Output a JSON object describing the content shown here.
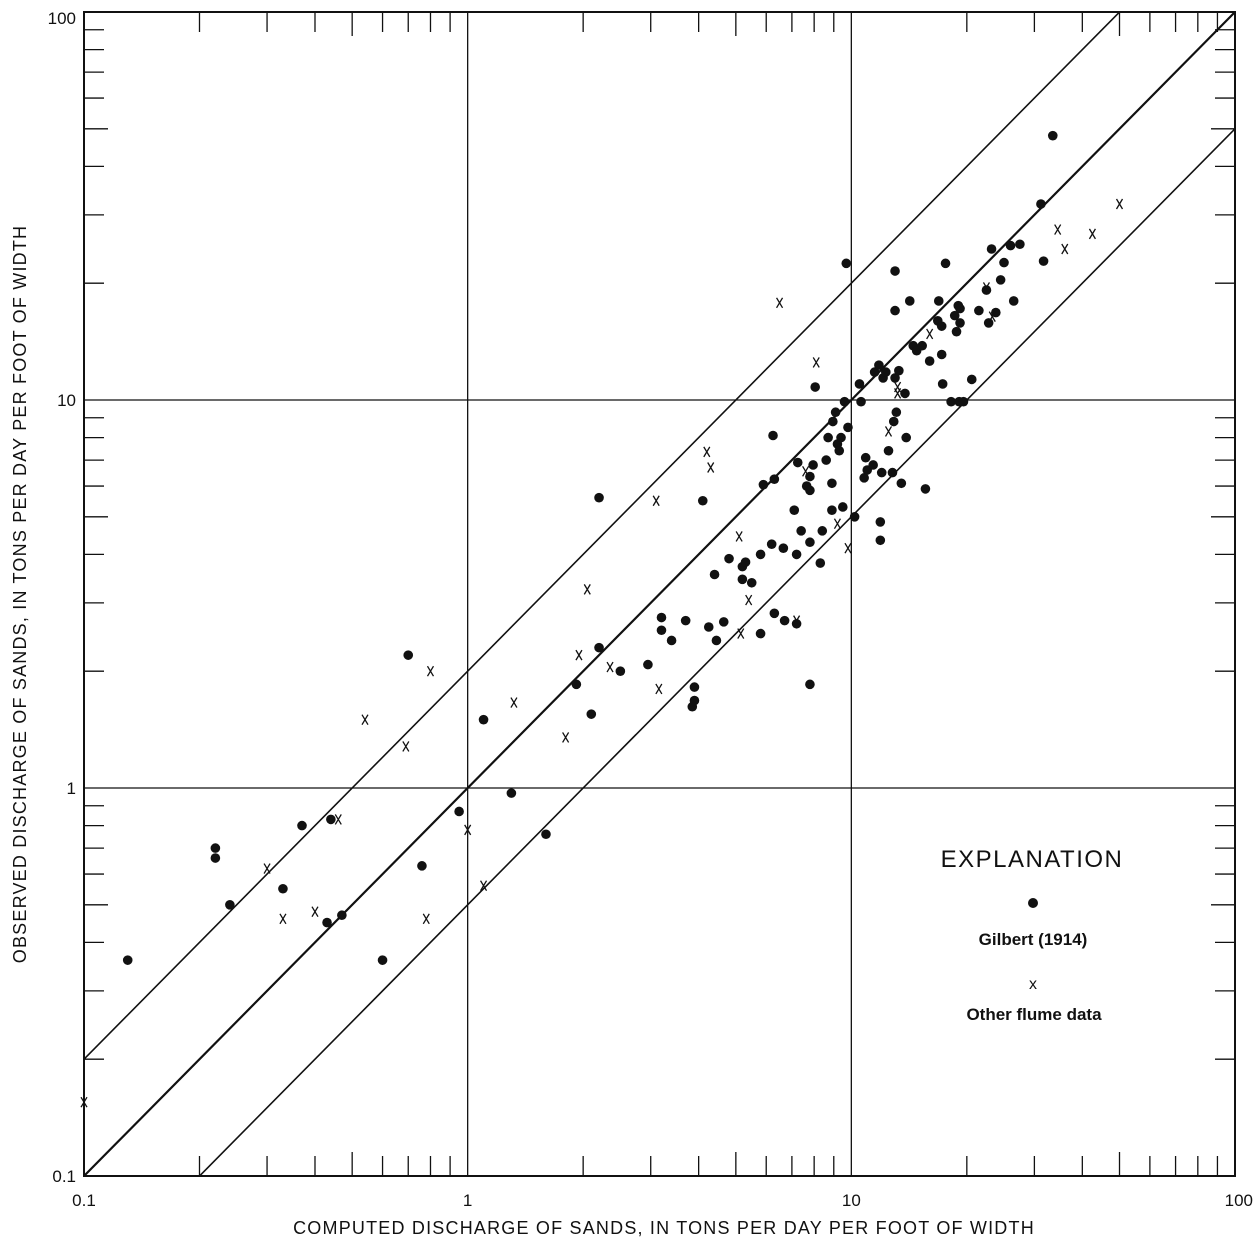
{
  "chart_data": {
    "type": "scatter",
    "xlabel": "COMPUTED DISCHARGE OF SANDS, IN TONS PER DAY PER FOOT OF WIDTH",
    "ylabel": "OBSERVED DISCHARGE OF SANDS, IN TONS PER DAY PER FOOT OF WIDTH",
    "xscale": "log",
    "yscale": "log",
    "xlim": [
      0.1,
      100
    ],
    "ylim": [
      0.1,
      100
    ],
    "x_tick_labels": [
      "0.1",
      "1",
      "10",
      "100"
    ],
    "y_tick_labels": [
      "0.1",
      "1",
      "10",
      "100"
    ],
    "grid": "major decades only",
    "reference_lines": [
      {
        "relation": "y = 2x"
      },
      {
        "relation": "y = x"
      },
      {
        "relation": "y = 0.5x"
      }
    ],
    "legend": {
      "title": "EXPLANATION",
      "placement": "lower-right",
      "entries": [
        {
          "marker": "dot",
          "label": "Gilbert (1914)"
        },
        {
          "marker": "x",
          "label": "Other flume data"
        }
      ]
    },
    "series": [
      {
        "name": "Gilbert (1914)",
        "marker": "dot",
        "points": [
          [
            0.13,
            0.36
          ],
          [
            0.22,
            0.7
          ],
          [
            0.22,
            0.66
          ],
          [
            0.24,
            0.5
          ],
          [
            0.33,
            0.55
          ],
          [
            0.37,
            0.8
          ],
          [
            0.43,
            0.45
          ],
          [
            0.44,
            0.83
          ],
          [
            0.47,
            0.47
          ],
          [
            0.6,
            0.36
          ],
          [
            0.7,
            2.2
          ],
          [
            0.76,
            0.63
          ],
          [
            0.95,
            0.87
          ],
          [
            1.1,
            1.5
          ],
          [
            1.3,
            0.97
          ],
          [
            1.6,
            0.76
          ],
          [
            1.92,
            1.85
          ],
          [
            2.1,
            1.55
          ],
          [
            2.2,
            2.3
          ],
          [
            2.2,
            5.6
          ],
          [
            2.5,
            2.0
          ],
          [
            2.95,
            2.08
          ],
          [
            3.2,
            2.55
          ],
          [
            3.2,
            2.75
          ],
          [
            3.4,
            2.4
          ],
          [
            3.7,
            2.7
          ],
          [
            3.85,
            1.62
          ],
          [
            3.9,
            1.82
          ],
          [
            3.9,
            1.68
          ],
          [
            4.1,
            5.5
          ],
          [
            4.25,
            2.6
          ],
          [
            4.4,
            3.55
          ],
          [
            4.45,
            2.4
          ],
          [
            4.65,
            2.68
          ],
          [
            4.8,
            3.9
          ],
          [
            5.2,
            3.45
          ],
          [
            5.2,
            3.72
          ],
          [
            5.3,
            3.82
          ],
          [
            5.5,
            3.38
          ],
          [
            5.8,
            2.5
          ],
          [
            5.8,
            4.0
          ],
          [
            5.9,
            6.05
          ],
          [
            6.2,
            4.25
          ],
          [
            6.25,
            8.1
          ],
          [
            6.3,
            2.82
          ],
          [
            6.3,
            6.25
          ],
          [
            6.65,
            4.15
          ],
          [
            6.7,
            2.7
          ],
          [
            7.1,
            5.2
          ],
          [
            7.2,
            2.65
          ],
          [
            7.2,
            4.0
          ],
          [
            7.25,
            6.9
          ],
          [
            7.4,
            4.6
          ],
          [
            7.65,
            6.0
          ],
          [
            7.8,
            4.3
          ],
          [
            7.8,
            1.85
          ],
          [
            7.8,
            6.35
          ],
          [
            7.8,
            5.85
          ],
          [
            7.95,
            6.8
          ],
          [
            8.05,
            10.8
          ],
          [
            8.3,
            3.8
          ],
          [
            8.4,
            4.6
          ],
          [
            8.6,
            7.0
          ],
          [
            8.7,
            8.0
          ],
          [
            8.9,
            5.2
          ],
          [
            8.9,
            6.1
          ],
          [
            8.95,
            8.8
          ],
          [
            9.1,
            9.3
          ],
          [
            9.2,
            7.7
          ],
          [
            9.3,
            7.4
          ],
          [
            9.4,
            8.0
          ],
          [
            9.5,
            5.3
          ],
          [
            9.6,
            9.9
          ],
          [
            9.7,
            22.5
          ],
          [
            9.8,
            8.5
          ],
          [
            10.2,
            5.0
          ],
          [
            10.5,
            11.0
          ],
          [
            10.6,
            9.9
          ],
          [
            10.8,
            6.3
          ],
          [
            10.9,
            7.1
          ],
          [
            11.0,
            6.6
          ],
          [
            11.4,
            6.8
          ],
          [
            11.5,
            11.8
          ],
          [
            11.8,
            12.3
          ],
          [
            11.9,
            4.85
          ],
          [
            11.9,
            4.35
          ],
          [
            12.0,
            6.5
          ],
          [
            12.1,
            11.4
          ],
          [
            12.3,
            11.8
          ],
          [
            12.5,
            7.4
          ],
          [
            12.8,
            6.5
          ],
          [
            12.9,
            8.8
          ],
          [
            13.0,
            21.5
          ],
          [
            13.0,
            17.0
          ],
          [
            13.0,
            11.4
          ],
          [
            13.1,
            9.3
          ],
          [
            13.3,
            11.9
          ],
          [
            13.5,
            6.1
          ],
          [
            13.8,
            10.4
          ],
          [
            13.9,
            8.0
          ],
          [
            14.2,
            18.0
          ],
          [
            14.5,
            13.8
          ],
          [
            14.8,
            13.4
          ],
          [
            15.3,
            13.8
          ],
          [
            15.6,
            5.9
          ],
          [
            16.0,
            12.6
          ],
          [
            16.8,
            16.0
          ],
          [
            16.9,
            18.0
          ],
          [
            17.2,
            15.5
          ],
          [
            17.2,
            13.1
          ],
          [
            17.3,
            11.0
          ],
          [
            17.6,
            22.5
          ],
          [
            18.2,
            9.9
          ],
          [
            18.6,
            16.5
          ],
          [
            18.8,
            15.0
          ],
          [
            19.0,
            17.5
          ],
          [
            19.1,
            9.9
          ],
          [
            19.2,
            17.2
          ],
          [
            19.2,
            15.8
          ],
          [
            19.6,
            9.9
          ],
          [
            20.6,
            11.3
          ],
          [
            21.5,
            17.0
          ],
          [
            22.5,
            19.2
          ],
          [
            22.8,
            15.8
          ],
          [
            23.2,
            24.5
          ],
          [
            23.8,
            16.8
          ],
          [
            24.5,
            20.4
          ],
          [
            25.0,
            22.6
          ],
          [
            26.0,
            25.0
          ],
          [
            26.5,
            18.0
          ],
          [
            27.5,
            25.2
          ],
          [
            31.2,
            32.0
          ],
          [
            31.7,
            22.8
          ],
          [
            33.5,
            48.0
          ]
        ]
      },
      {
        "name": "Other flume data",
        "marker": "x",
        "points": [
          [
            0.1,
            0.155
          ],
          [
            0.3,
            0.62
          ],
          [
            0.33,
            0.46
          ],
          [
            0.4,
            0.48
          ],
          [
            0.46,
            0.83
          ],
          [
            0.54,
            1.5
          ],
          [
            0.69,
            1.28
          ],
          [
            0.78,
            0.46
          ],
          [
            0.8,
            2.0
          ],
          [
            1.0,
            0.78
          ],
          [
            1.1,
            0.56
          ],
          [
            1.32,
            1.66
          ],
          [
            1.8,
            1.35
          ],
          [
            1.95,
            2.2
          ],
          [
            2.05,
            3.25
          ],
          [
            2.35,
            2.05
          ],
          [
            3.1,
            5.5
          ],
          [
            3.15,
            1.8
          ],
          [
            4.2,
            7.35
          ],
          [
            4.3,
            6.7
          ],
          [
            5.1,
            4.45
          ],
          [
            5.15,
            2.5
          ],
          [
            5.4,
            3.05
          ],
          [
            6.5,
            17.8
          ],
          [
            7.2,
            2.7
          ],
          [
            7.6,
            6.55
          ],
          [
            8.1,
            12.5
          ],
          [
            9.2,
            4.8
          ],
          [
            9.8,
            4.15
          ],
          [
            12.5,
            8.3
          ],
          [
            13.2,
            10.8
          ],
          [
            13.2,
            10.4
          ],
          [
            16.0,
            14.8
          ],
          [
            22.5,
            19.5
          ],
          [
            23.3,
            16.4
          ],
          [
            34.5,
            27.5
          ],
          [
            36.0,
            24.5
          ],
          [
            42.5,
            26.8
          ],
          [
            50.0,
            32.0
          ]
        ]
      }
    ]
  }
}
